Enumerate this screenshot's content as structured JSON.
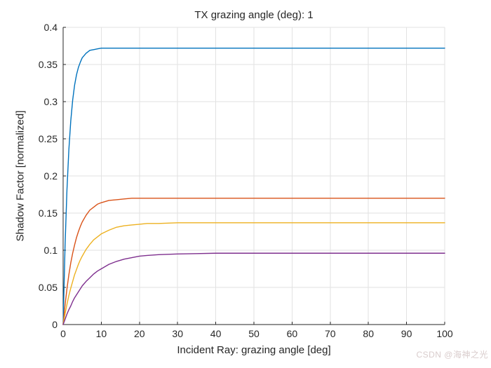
{
  "chart_data": {
    "type": "line",
    "title": "TX grazing angle (deg): 1",
    "xlabel": "Incident Ray: grazing angle [deg]",
    "ylabel": "Shadow Factor [normalized]",
    "xlim": [
      0,
      100
    ],
    "ylim": [
      0,
      0.4
    ],
    "grid": true,
    "legend_position": "none",
    "x_ticks": [
      0,
      10,
      20,
      30,
      40,
      50,
      60,
      70,
      80,
      90,
      100
    ],
    "x_tick_labels": [
      "0",
      "10",
      "20",
      "30",
      "40",
      "50",
      "60",
      "70",
      "80",
      "90",
      "100"
    ],
    "y_ticks": [
      0,
      0.05,
      0.1,
      0.15,
      0.2,
      0.25,
      0.3,
      0.35,
      0.4
    ],
    "y_tick_labels": [
      "0",
      "0.05",
      "0.1",
      "0.15",
      "0.2",
      "0.25",
      "0.3",
      "0.35",
      "0.4"
    ],
    "x": [
      0,
      0.5,
      1,
      1.5,
      2,
      2.5,
      3,
      3.5,
      4,
      4.5,
      5,
      6,
      7,
      8,
      9,
      10,
      12,
      14,
      16,
      18,
      20,
      22,
      25,
      30,
      35,
      40,
      50,
      60,
      70,
      80,
      90,
      100
    ],
    "series": [
      {
        "name": "curve-blue",
        "color": "#0072BD",
        "plateau": 0.372,
        "values": [
          0,
          0.105,
          0.181,
          0.235,
          0.274,
          0.302,
          0.322,
          0.336,
          0.346,
          0.353,
          0.359,
          0.365,
          0.369,
          0.37,
          0.371,
          0.372,
          0.372,
          0.372,
          0.372,
          0.372,
          0.372,
          0.372,
          0.372,
          0.372,
          0.372,
          0.372,
          0.372,
          0.372,
          0.372,
          0.372,
          0.372,
          0.372
        ]
      },
      {
        "name": "curve-orange",
        "color": "#D95319",
        "plateau": 0.17,
        "values": [
          0,
          0.026,
          0.048,
          0.067,
          0.083,
          0.096,
          0.107,
          0.117,
          0.125,
          0.132,
          0.138,
          0.147,
          0.154,
          0.158,
          0.162,
          0.164,
          0.167,
          0.168,
          0.169,
          0.17,
          0.17,
          0.17,
          0.17,
          0.17,
          0.17,
          0.17,
          0.17,
          0.17,
          0.17,
          0.17,
          0.17,
          0.17
        ]
      },
      {
        "name": "curve-yellow",
        "color": "#EDB120",
        "plateau": 0.137,
        "values": [
          0,
          0.014,
          0.027,
          0.039,
          0.049,
          0.058,
          0.067,
          0.074,
          0.081,
          0.087,
          0.092,
          0.101,
          0.108,
          0.114,
          0.118,
          0.122,
          0.127,
          0.131,
          0.133,
          0.134,
          0.135,
          0.136,
          0.136,
          0.137,
          0.137,
          0.137,
          0.137,
          0.137,
          0.137,
          0.137,
          0.137,
          0.137
        ]
      },
      {
        "name": "curve-purple",
        "color": "#7E2F8E",
        "plateau": 0.096,
        "values": [
          0,
          0.007,
          0.014,
          0.02,
          0.025,
          0.031,
          0.036,
          0.04,
          0.044,
          0.048,
          0.052,
          0.058,
          0.063,
          0.068,
          0.072,
          0.075,
          0.081,
          0.085,
          0.088,
          0.09,
          0.092,
          0.093,
          0.094,
          0.095,
          0.0955,
          0.096,
          0.096,
          0.096,
          0.096,
          0.096,
          0.096,
          0.096
        ]
      }
    ]
  },
  "axis": {
    "color": "#262626",
    "grid_color": "#e2e2e2",
    "tick_length": 4
  },
  "background_color": "#ffffff",
  "watermark": {
    "text": "CSDN @海神之光",
    "color": "#d9cccc"
  }
}
